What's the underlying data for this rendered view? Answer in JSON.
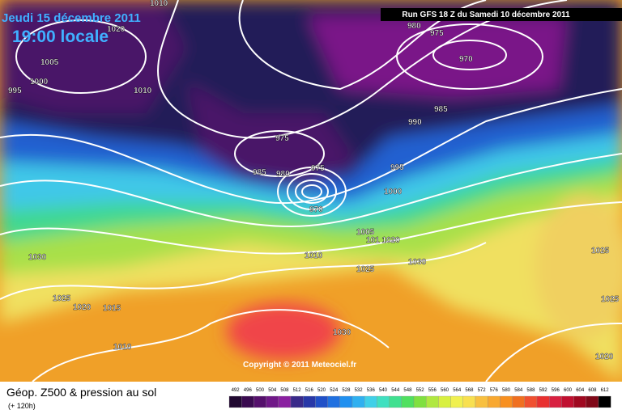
{
  "header": {
    "date": "Jeudi 15 décembre 2011",
    "time": "19:00 locale",
    "run": "Run GFS 18 Z du Samedi 10 décembre 2011"
  },
  "copyright": "Copyright © 2011 Meteociel.fr",
  "legend": {
    "title": "Géop. Z500 & pression au sol",
    "subtitle": "(+ 120h)",
    "labels": [
      "492",
      "496",
      "500",
      "504",
      "508",
      "512",
      "516",
      "520",
      "524",
      "528",
      "532",
      "536",
      "540",
      "544",
      "548",
      "552",
      "556",
      "560",
      "564",
      "568",
      "572",
      "576",
      "580",
      "584",
      "588",
      "592",
      "596",
      "600",
      "604",
      "608",
      "612"
    ],
    "colors": [
      "#200830",
      "#3a0a50",
      "#55106c",
      "#701888",
      "#8a20a0",
      "#3a2a8a",
      "#2838a8",
      "#2050c8",
      "#2070e0",
      "#2090f0",
      "#30b0f0",
      "#40d0e8",
      "#40e0c0",
      "#40e090",
      "#50e060",
      "#80e040",
      "#b0e840",
      "#d8f040",
      "#f0f050",
      "#f8e050",
      "#f8c040",
      "#f8a830",
      "#f89020",
      "#f07020",
      "#f05030",
      "#e83030",
      "#d82040",
      "#c01030",
      "#a00820",
      "#800818",
      "#000000"
    ]
  },
  "isobars": [
    "1010",
    "1020",
    "1005",
    "1000",
    "995",
    "1010",
    "980",
    "975",
    "970",
    "985",
    "990",
    "975",
    "975",
    "985",
    "980",
    "995",
    "1000",
    "970",
    "1005",
    "101 1020",
    "1030",
    "1010",
    "1025",
    "1030",
    "1025",
    "1025",
    "1020",
    "1015",
    "1030",
    "1010",
    "1025",
    "1020"
  ]
}
